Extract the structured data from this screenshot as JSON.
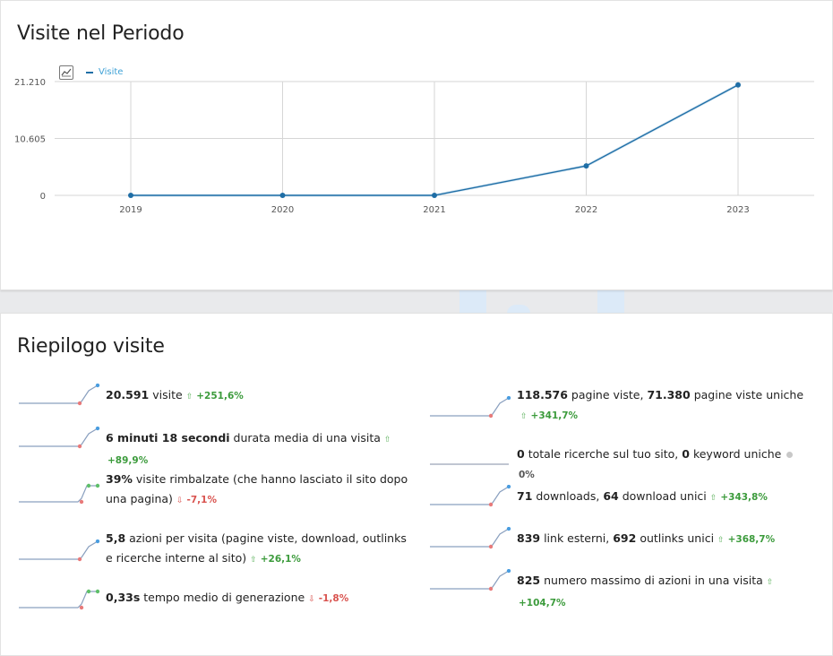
{
  "visits_period": {
    "title": "Visite nel Periodo",
    "legend": "Visite",
    "chart_data": {
      "type": "line",
      "x": [
        "2019",
        "2020",
        "2021",
        "2022",
        "2023"
      ],
      "series": [
        {
          "name": "Visite",
          "values": [
            0,
            0,
            0,
            5500,
            20591
          ]
        }
      ],
      "yticks": [
        "21.210",
        "10.605",
        "0"
      ],
      "ylim": [
        0,
        21210
      ],
      "grid": true,
      "color": "#1f6ea6"
    }
  },
  "summary": {
    "title": "Riepilogo visite",
    "left": [
      {
        "value": "20.591",
        "label": "visite",
        "change": "+251,6%",
        "trend": "up"
      },
      {
        "value": "6 minuti 18 secondi",
        "label": "durata media di una visita",
        "change": "+89,9%",
        "trend": "up"
      },
      {
        "value": "39%",
        "label": "visite rimbalzate (che hanno lasciato il sito dopo una pagina)",
        "change": "-7,1%",
        "trend": "down"
      },
      {
        "value": "5,8",
        "label": "azioni per visita (pagine viste, download, outlinks e ricerche interne al sito)",
        "change": "+26,1%",
        "trend": "up"
      },
      {
        "value": "0,33s",
        "label": "tempo medio di generazione",
        "change": "-1,8%",
        "trend": "down"
      }
    ],
    "right": [
      {
        "value": "118.576",
        "label": "pagine viste,",
        "value2": "71.380",
        "label2": "pagine viste uniche",
        "change": "+341,7%",
        "trend": "up"
      },
      {
        "value": "0",
        "label": "totale ricerche sul tuo sito,",
        "value2": "0",
        "label2": "keyword uniche",
        "change": "0%",
        "trend": "none"
      },
      {
        "value": "71",
        "label": "downloads,",
        "value2": "64",
        "label2": "download unici",
        "change": "+343,8%",
        "trend": "up"
      },
      {
        "value": "839",
        "label": "link esterni,",
        "value2": "692",
        "label2": "outlinks unici",
        "change": "+368,7%",
        "trend": "up"
      },
      {
        "value": "825",
        "label": "numero massimo di azioni in una visita",
        "change": "+104,7%",
        "trend": "up"
      }
    ]
  }
}
